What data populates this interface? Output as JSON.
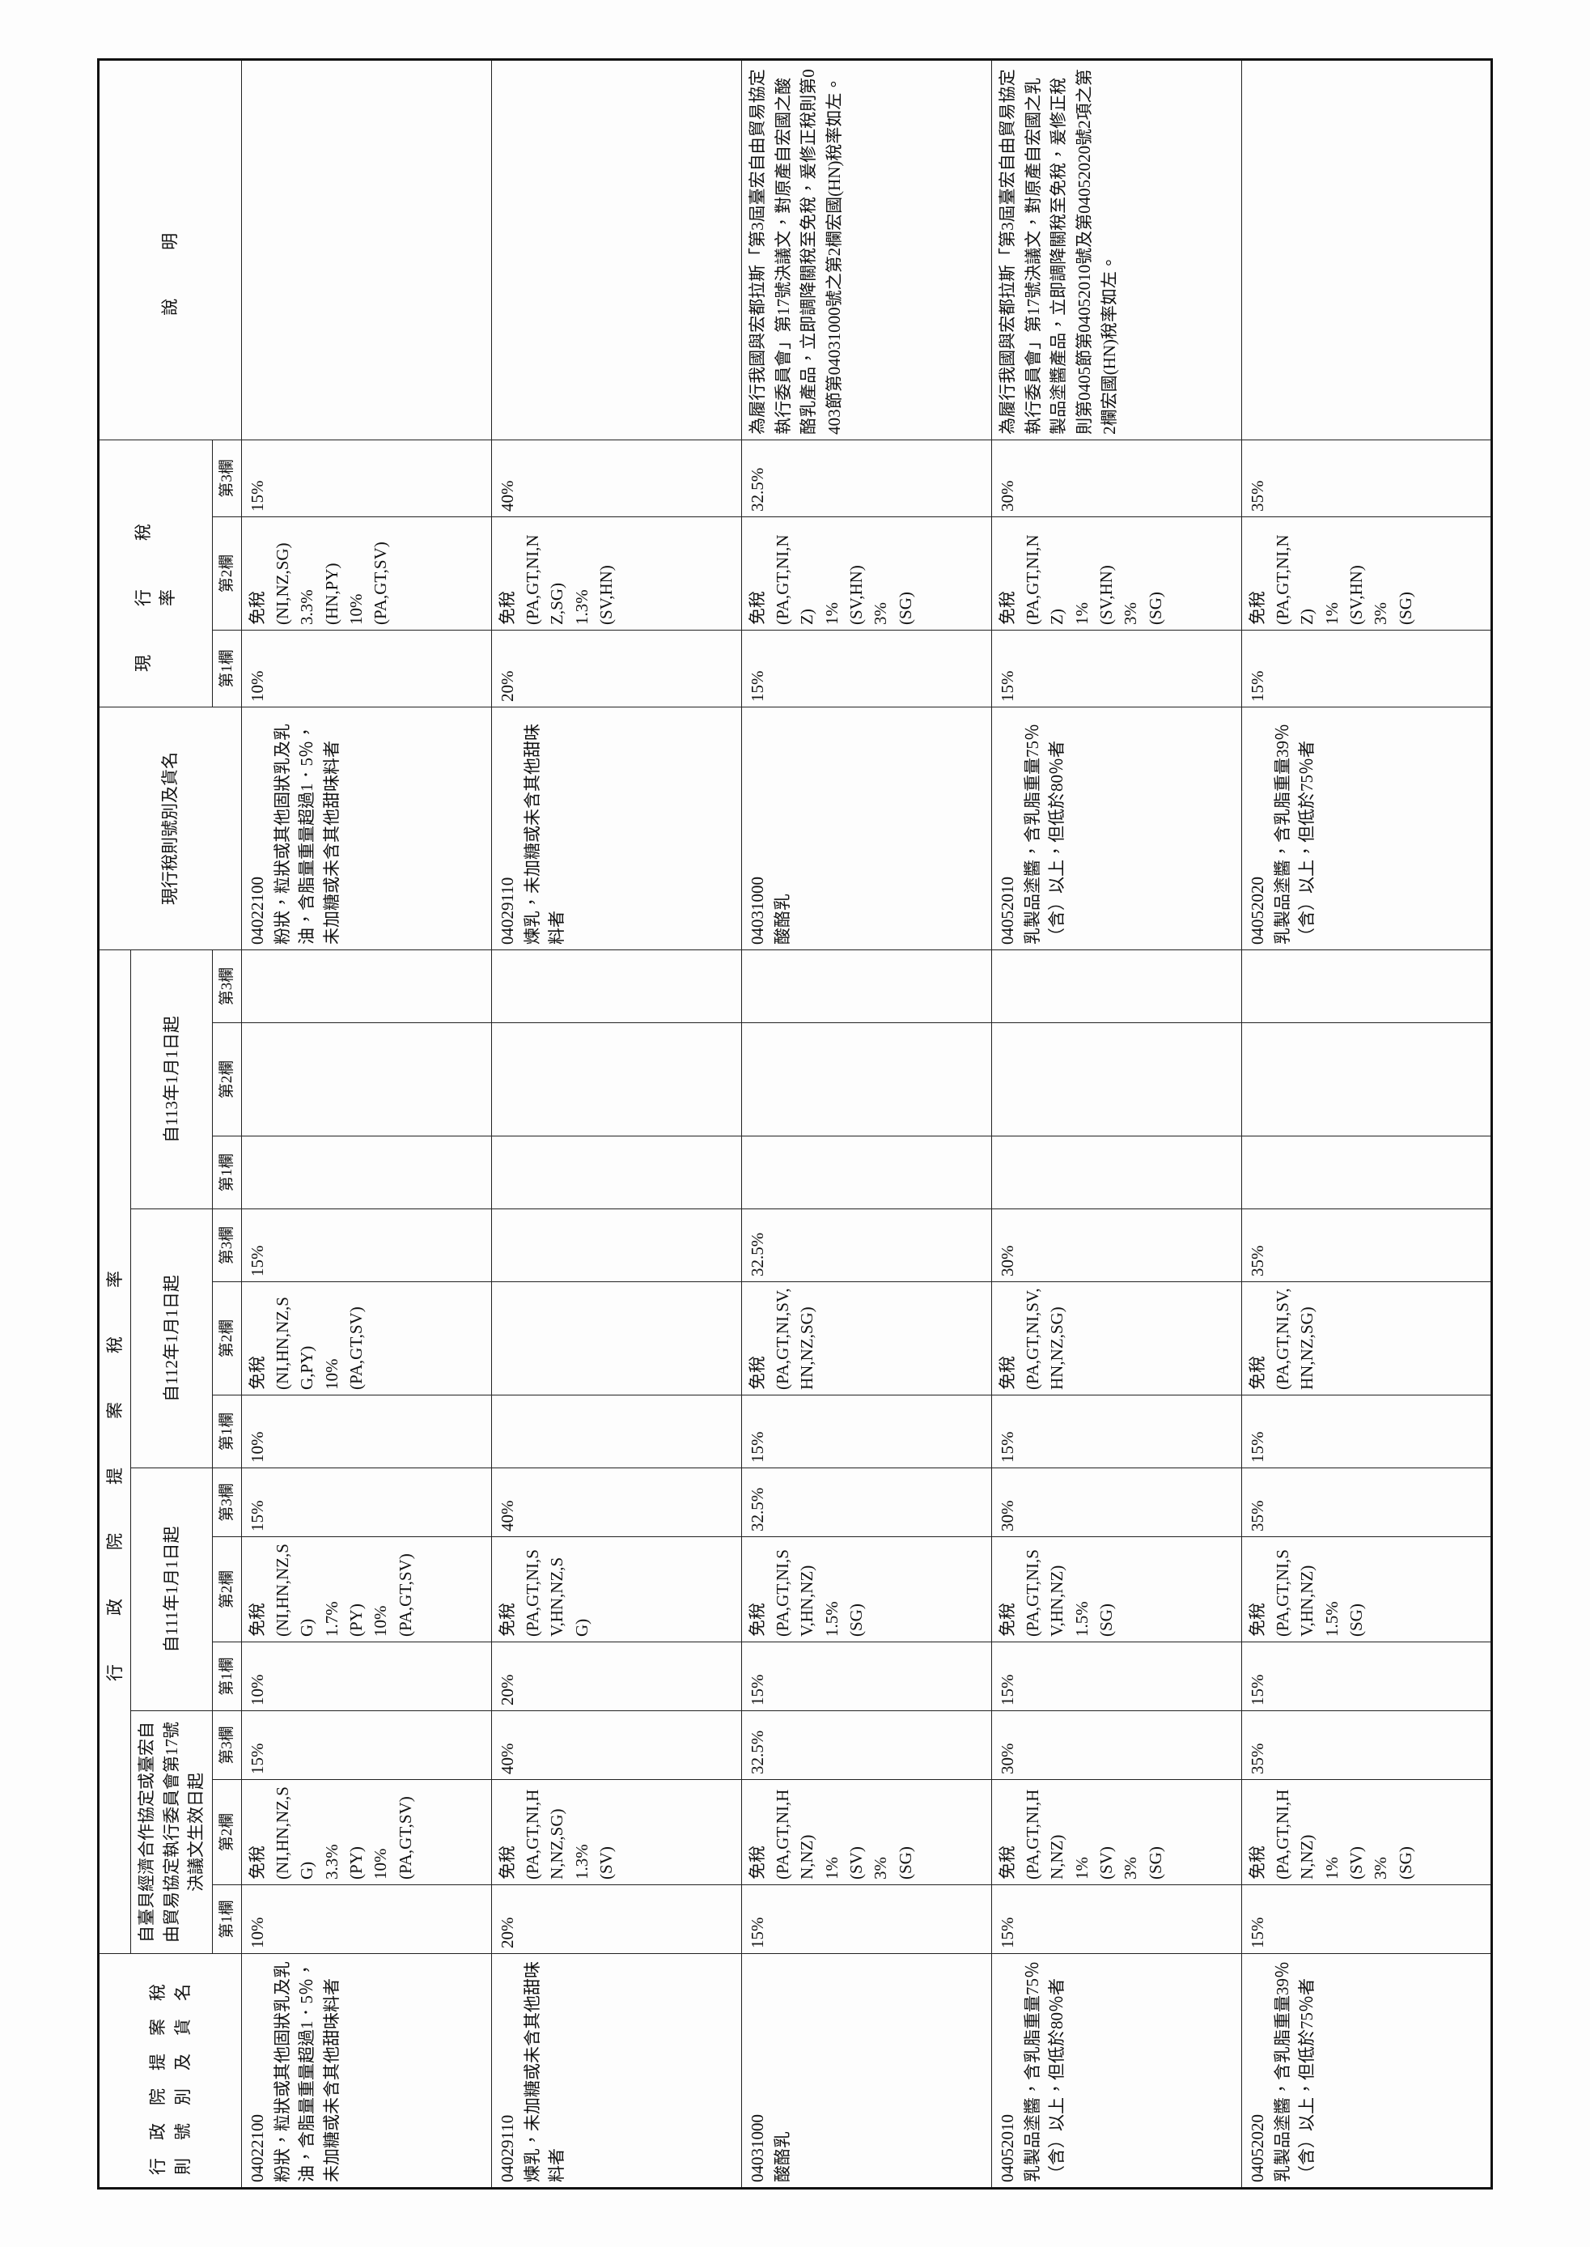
{
  "header": {
    "proposal_title": "行政院提案稅則號別及貨名",
    "proposal_rates": "行政院提案稅率",
    "periods": [
      "自臺貝經濟合作協定或臺宏自由貿易協定執行委員會第17號決議文生效日起",
      "自111年1月1日起",
      "自112年1月1日起",
      "自113年1月1日起"
    ],
    "column_labels": [
      "第1欄",
      "第2欄",
      "第3欄"
    ],
    "current_title": "現行稅則號別及貨名",
    "current_rates": "現行稅率",
    "notes": "說明"
  },
  "rows": [
    {
      "code": "04022100",
      "name": "粉狀，粒狀或其他固狀乳及乳油，含脂量重量超過1．5％，未加糖或未含其他甜味料者",
      "rates": [
        [
          [
            "10%"
          ],
          [
            "免稅",
            "(NI,HN,NZ,SG)",
            "3.3%",
            "(PY)",
            "10%",
            "(PA,GT,SV)"
          ],
          [
            "15%"
          ]
        ],
        [
          [
            "10%"
          ],
          [
            "免稅",
            "(NI,HN,NZ,SG)",
            "1.7%",
            "(PY)",
            "10%",
            "(PA,GT,SV)"
          ],
          [
            "15%"
          ]
        ],
        [
          [
            "10%"
          ],
          [
            "免稅",
            "(NI,HN,NZ,SG,PY)",
            "10%",
            "(PA,GT,SV)"
          ],
          [
            "15%"
          ]
        ],
        [
          [],
          [],
          []
        ]
      ],
      "current_code": "04022100",
      "current_name": "粉狀，粒狀或其他固狀乳及乳油，含脂量重量超過1．5％，未加糖或未含其他甜味料者",
      "current_rates": [
        [
          "10%"
        ],
        [
          "免稅",
          "(NI,NZ,SG)",
          "3.3%",
          "(HN,PY)",
          "10%",
          "(PA,GT,SV)"
        ],
        [
          "15%"
        ]
      ],
      "note": null
    },
    {
      "code": "04029110",
      "name": "煉乳，未加糖或未含其他甜味料者",
      "rates": [
        [
          [
            "20%"
          ],
          [
            "免稅",
            "(PA,GT,NI,HN,NZ,SG)",
            "1.3%",
            "(SV)"
          ],
          [
            "40%"
          ]
        ],
        [
          [
            "20%"
          ],
          [
            "免稅",
            "(PA,GT,NI,SV,HN,NZ,SG)"
          ],
          [
            "40%"
          ]
        ],
        [
          [],
          [],
          []
        ],
        [
          [],
          [],
          []
        ]
      ],
      "current_code": "04029110",
      "current_name": "煉乳，未加糖或未含其他甜味料者",
      "current_rates": [
        [
          "20%"
        ],
        [
          "免稅",
          "(PA,GT,NI,NZ,SG)",
          "1.3%",
          "(SV,HN)"
        ],
        [
          "40%"
        ]
      ],
      "note": null
    },
    {
      "code": "04031000",
      "name": "酸酪乳",
      "rates": [
        [
          [
            "15%"
          ],
          [
            "免稅",
            "(PA,GT,NI,HN,NZ)",
            "1%",
            "(SV)",
            "3%",
            "(SG)"
          ],
          [
            "32.5%"
          ]
        ],
        [
          [
            "15%"
          ],
          [
            "免稅",
            "(PA,GT,NI,SV,HN,NZ)",
            "1.5%",
            "(SG)"
          ],
          [
            "32.5%"
          ]
        ],
        [
          [
            "15%"
          ],
          [
            "免稅",
            "(PA,GT,NI,SV,HN,NZ,SG)"
          ],
          [
            "32.5%"
          ]
        ],
        [
          [],
          [],
          []
        ]
      ],
      "current_code": "04031000",
      "current_name": "酸酪乳",
      "current_rates": [
        [
          "15%"
        ],
        [
          "免稅",
          "(PA,GT,NI,NZ)",
          "1%",
          "(SV,HN)",
          "3%",
          "(SG)"
        ],
        [
          "32.5%"
        ]
      ],
      "note": "為履行我國與宏都拉斯「第3屆臺宏自由貿易協定執行委員會」第17號決議文，對原產自宏國之酸酪乳產品，立即調降關稅至免稅，爰修正稅則第0403節第04031000號之第2欄宏國(HN)稅率如左。"
    },
    {
      "code": "04052010",
      "name": "乳製品塗醬，含乳脂重量75％（含）以上，但低於80％者",
      "rates": [
        [
          [
            "15%"
          ],
          [
            "免稅",
            "(PA,GT,NI,HN,NZ)",
            "1%",
            "(SV)",
            "3%",
            "(SG)"
          ],
          [
            "30%"
          ]
        ],
        [
          [
            "15%"
          ],
          [
            "免稅",
            "(PA,GT,NI,SV,HN,NZ)",
            "1.5%",
            "(SG)"
          ],
          [
            "30%"
          ]
        ],
        [
          [
            "15%"
          ],
          [
            "免稅",
            "(PA,GT,NI,SV,HN,NZ,SG)"
          ],
          [
            "30%"
          ]
        ],
        [
          [],
          [],
          []
        ]
      ],
      "current_code": "04052010",
      "current_name": "乳製品塗醬，含乳脂重量75％（含）以上，但低於80％者",
      "current_rates": [
        [
          "15%"
        ],
        [
          "免稅",
          "(PA,GT,NI,NZ)",
          "1%",
          "(SV,HN)",
          "3%",
          "(SG)"
        ],
        [
          "30%"
        ]
      ],
      "note": "為履行我國與宏都拉斯「第3屆臺宏自由貿易協定執行委員會」第17號決議文，對原產自宏國之乳製品塗醬產品，立即調降關稅至免稅，爰修正稅則第0405節第04052010號及第04052020號2項之第2欄宏國(HN)稅率如左。"
    },
    {
      "code": "04052020",
      "name": "乳製品塗醬，含乳脂重量39％（含）以上，但低於75％者",
      "rates": [
        [
          [
            "15%"
          ],
          [
            "免稅",
            "(PA,GT,NI,HN,NZ)",
            "1%",
            "(SV)",
            "3%",
            "(SG)"
          ],
          [
            "35%"
          ]
        ],
        [
          [
            "15%"
          ],
          [
            "免稅",
            "(PA,GT,NI,SV,HN,NZ)",
            "1.5%",
            "(SG)"
          ],
          [
            "35%"
          ]
        ],
        [
          [
            "15%"
          ],
          [
            "免稅",
            "(PA,GT,NI,SV,HN,NZ,SG)"
          ],
          [
            "35%"
          ]
        ],
        [
          [],
          [],
          []
        ]
      ],
      "current_code": "04052020",
      "current_name": "乳製品塗醬，含乳脂重量39％（含）以上，但低於75％者",
      "current_rates": [
        [
          "15%"
        ],
        [
          "免稅",
          "(PA,GT,NI,NZ)",
          "1%",
          "(SV,HN)",
          "3%",
          "(SG)"
        ],
        [
          "35%"
        ]
      ],
      "note": null
    }
  ]
}
